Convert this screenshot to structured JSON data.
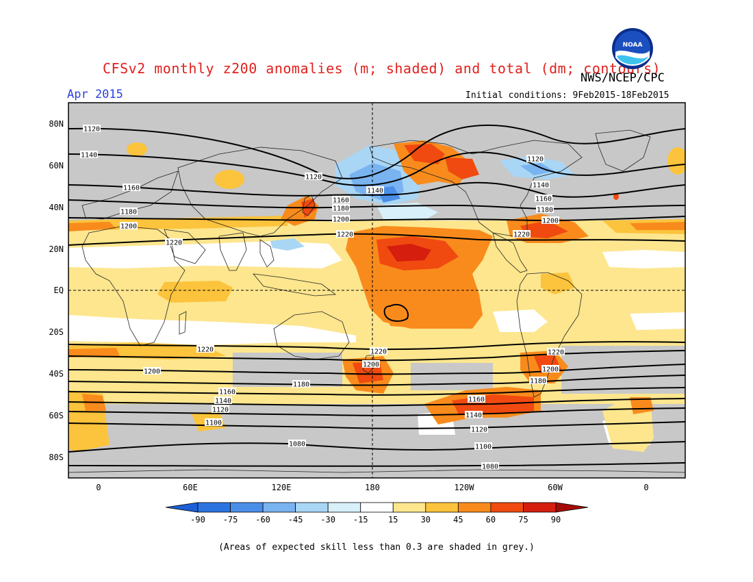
{
  "header": {
    "title": "CFSv2 monthly z200 anomalies (m; shaded) and total (dm; contours)",
    "agency": "NWS/NCEP/CPC",
    "month": "Apr 2015",
    "initial_conditions": "Initial conditions: 9Feb2015-18Feb2015",
    "logo_text": "NOAA"
  },
  "map": {
    "lat_labels": [
      "80N",
      "60N",
      "40N",
      "20N",
      "EQ",
      "20S",
      "40S",
      "60S",
      "80S"
    ],
    "lon_labels": [
      "0",
      "60E",
      "120E",
      "180",
      "120W",
      "60W",
      "0"
    ],
    "grey_color": "#c8c8c8",
    "contour_labels": [
      "1120",
      "1140",
      "1160",
      "1180",
      "1200",
      "1220",
      "1120",
      "1140",
      "1160",
      "1180",
      "1200",
      "1220",
      "1120",
      "1140",
      "1160",
      "1180",
      "1200",
      "1220",
      "1220",
      "1200",
      "1180",
      "1160",
      "1140",
      "1120",
      "1100",
      "1080",
      "1220",
      "1200",
      "1180",
      "1160",
      "1140",
      "1120",
      "1100",
      "1080",
      "1220",
      "1200"
    ]
  },
  "colorbar": {
    "ticks": [
      "-90",
      "-75",
      "-60",
      "-45",
      "-30",
      "-15",
      "15",
      "30",
      "45",
      "60",
      "75",
      "90"
    ],
    "colors": [
      "#1c5fd6",
      "#2b74e0",
      "#4a8ee8",
      "#79b3f0",
      "#a9d6f5",
      "#d7f0fa",
      "#ffffff",
      "#fde68e",
      "#fcc33c",
      "#f98b1c",
      "#f04a10",
      "#d51e0e",
      "#a40a08"
    ]
  },
  "footnote": "(Areas of expected skill less than 0.3 are shaded in grey.)"
}
